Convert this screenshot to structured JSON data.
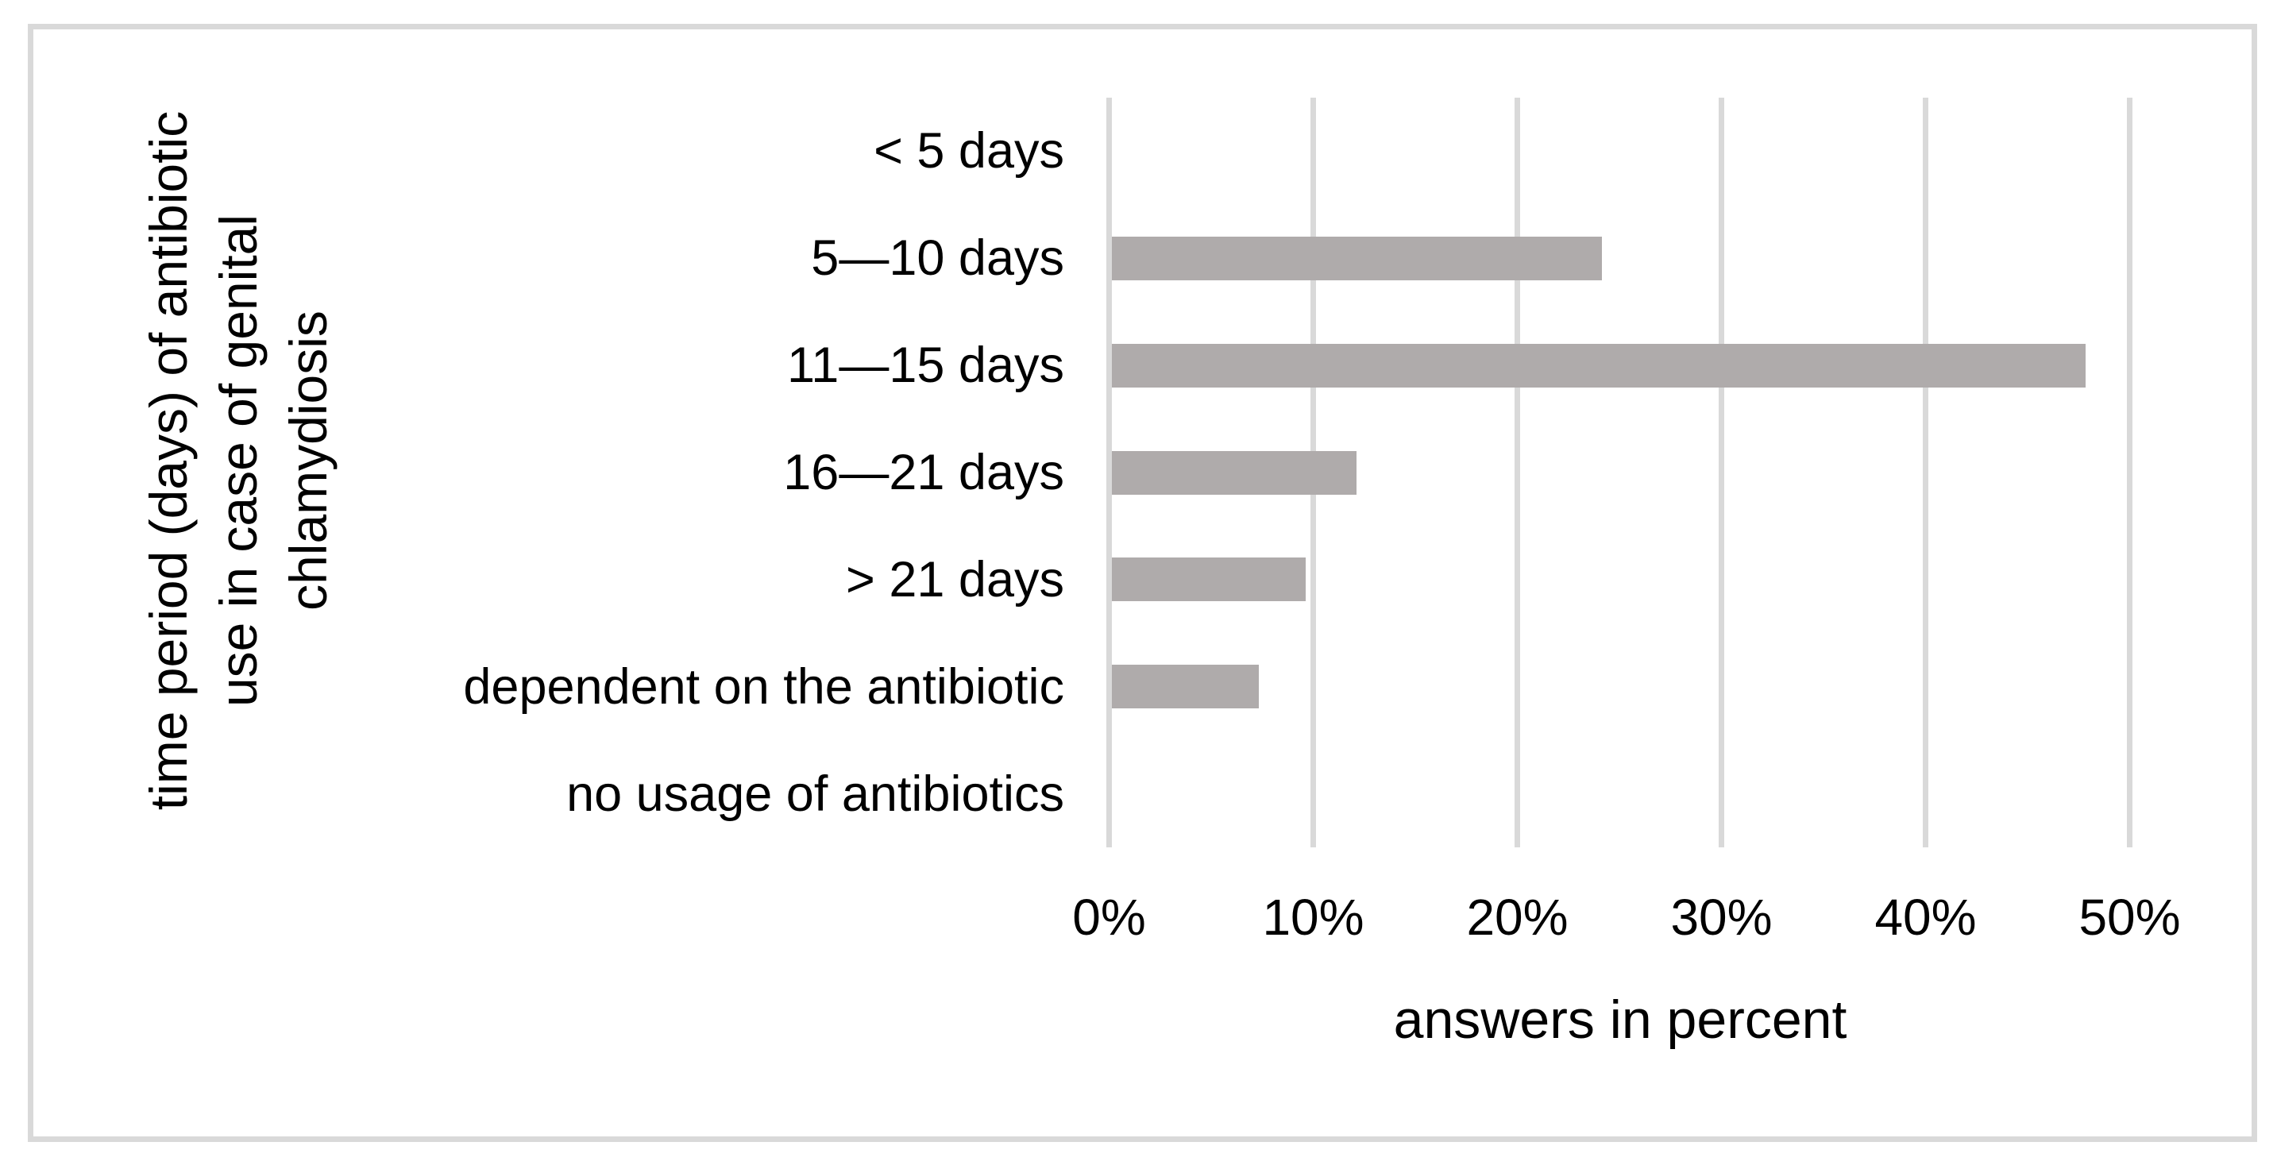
{
  "figure": {
    "background_color": "#FFFFFF",
    "border_color": "#D9D9D9"
  },
  "chart_data": {
    "type": "bar",
    "orientation": "horizontal",
    "title": "",
    "categories": [
      "< 5 days",
      "5—10 days",
      "11—15 days",
      "16—21 days",
      "> 21 days",
      "dependent on the antibiotic",
      "no usage of antibiotics"
    ],
    "values": [
      0,
      24,
      47.7,
      12,
      9.5,
      7.2,
      0
    ],
    "unit": "percent",
    "xlabel": "answers in percent",
    "ylabel": "time period (days) of antibiotic use in case of genital chlamydiosis",
    "ylabel_lines": [
      "time period (days) of antibiotic",
      "use in case of genital",
      "chlamydiosis"
    ],
    "x_ticks": [
      "0%",
      "10%",
      "20%",
      "30%",
      "40%",
      "50%"
    ],
    "x_tick_values": [
      0,
      10,
      20,
      30,
      40,
      50
    ],
    "xlim": [
      0,
      50
    ],
    "bar_color": "#AFABAB",
    "gridline_color": "#D9D9D9",
    "grid": "vertical-gridlines-only",
    "legend": "none",
    "data_labels": "none"
  }
}
